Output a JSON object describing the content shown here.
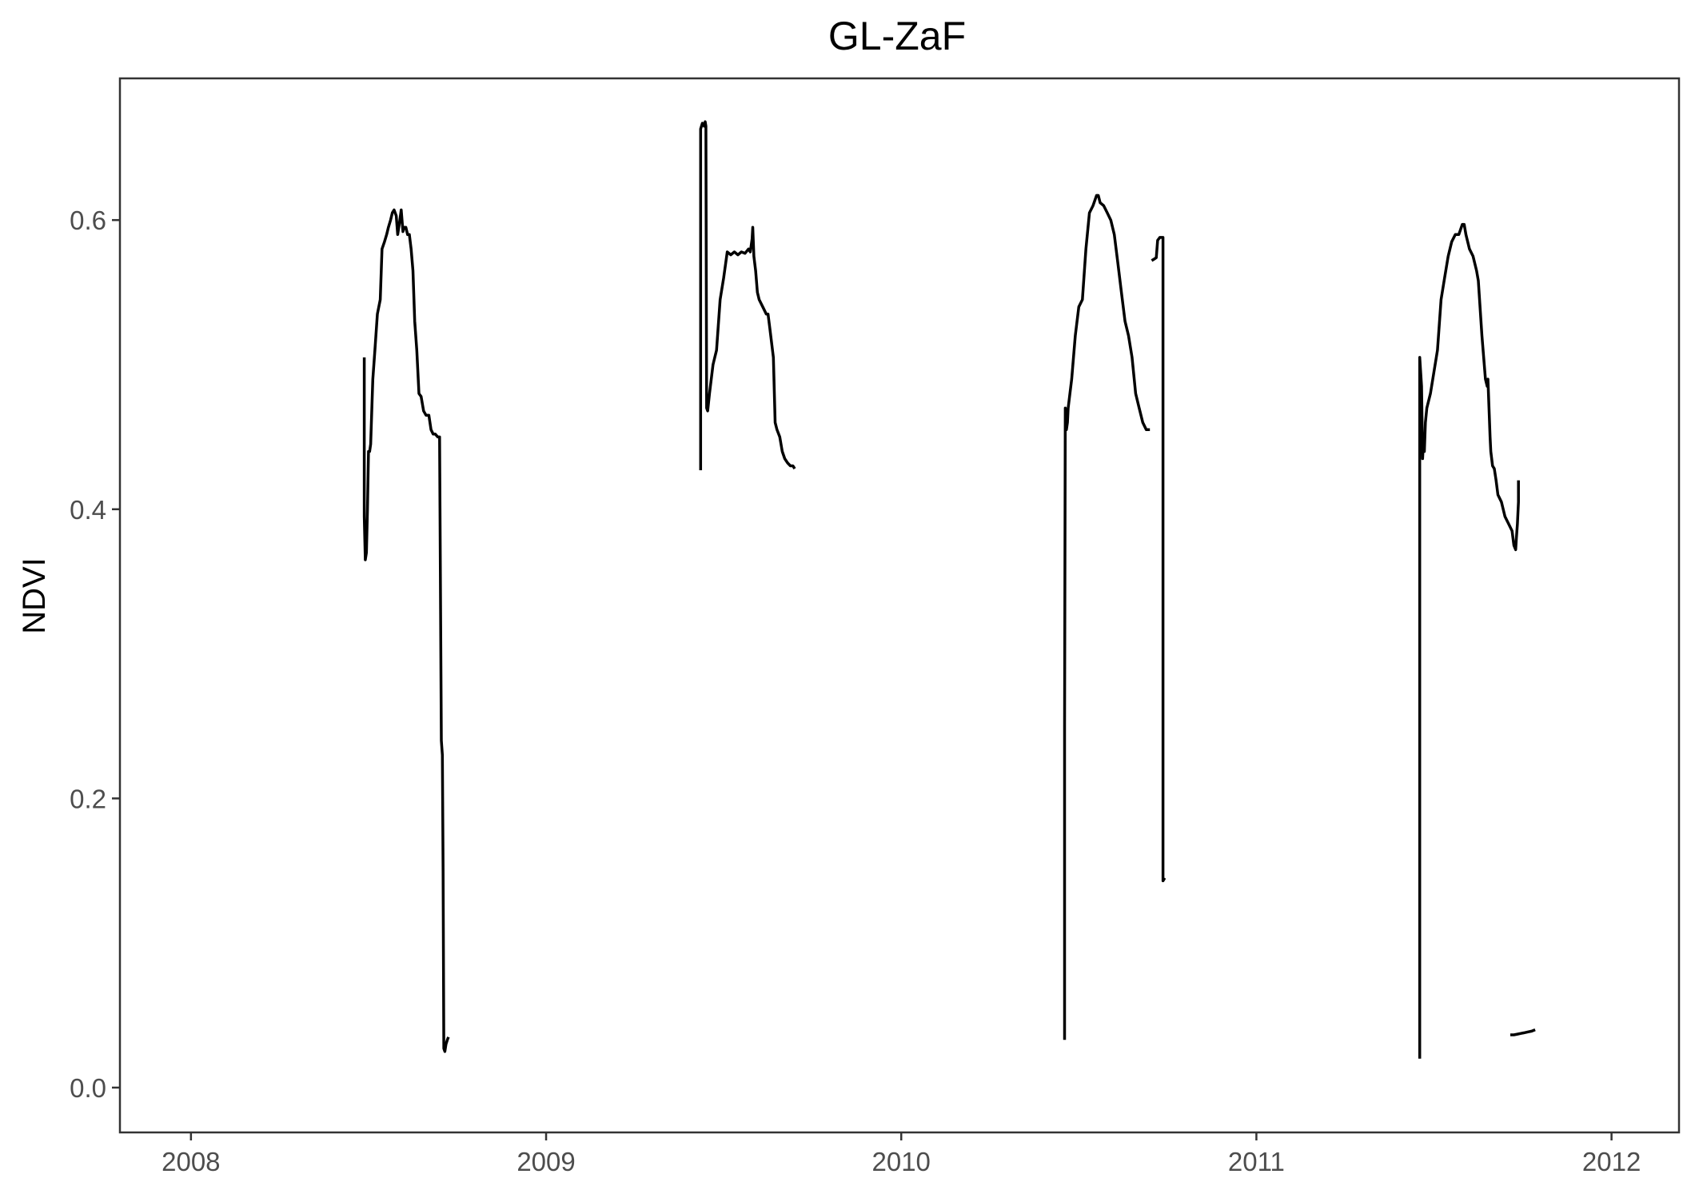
{
  "chart_data": {
    "type": "line",
    "title": "GL-ZaF",
    "xlabel": "",
    "ylabel": "NDVI",
    "x_tick_labels": [
      "2008",
      "2009",
      "2010",
      "2011",
      "2012"
    ],
    "x_tick_values": [
      2008,
      2009,
      2010,
      2011,
      2012
    ],
    "xlim": [
      2007.8,
      2012.19
    ],
    "y_tick_labels": [
      "0.0",
      "0.2",
      "0.4",
      "0.6"
    ],
    "y_tick_values": [
      0.0,
      0.2,
      0.4,
      0.6
    ],
    "ylim": [
      -0.031,
      0.698
    ],
    "grid": false,
    "legend": "none",
    "series_color": "#000000",
    "series": [
      {
        "x": [
          2008.488,
          2008.488,
          2008.491,
          2008.494,
          2008.497,
          2008.5,
          2008.503,
          2008.506,
          2008.512,
          2008.518,
          2008.525,
          2008.533,
          2008.538,
          2008.545,
          2008.551,
          2008.556,
          2008.562,
          2008.567,
          2008.572,
          2008.578,
          2008.582,
          2008.587,
          2008.592,
          2008.597,
          2008.6,
          2008.605,
          2008.61,
          2008.615,
          2008.62,
          2008.625,
          2008.63,
          2008.636,
          2008.642,
          2008.648,
          2008.655,
          2008.662,
          2008.67,
          2008.676,
          2008.682,
          2008.688,
          2008.695,
          2008.7,
          2008.705,
          2008.708,
          2008.71,
          2008.712,
          2008.715,
          2008.718,
          2008.722,
          2008.725
        ],
        "y": [
          0.505,
          0.395,
          0.365,
          0.37,
          0.4,
          0.44,
          0.44,
          0.445,
          0.49,
          0.51,
          0.535,
          0.545,
          0.58,
          0.585,
          0.59,
          0.595,
          0.6,
          0.605,
          0.607,
          0.603,
          0.59,
          0.598,
          0.607,
          0.592,
          0.595,
          0.595,
          0.59,
          0.59,
          0.58,
          0.565,
          0.53,
          0.51,
          0.48,
          0.478,
          0.468,
          0.465,
          0.465,
          0.455,
          0.452,
          0.452,
          0.45,
          0.45,
          0.24,
          0.23,
          0.15,
          0.027,
          0.025,
          0.03,
          0.033,
          0.035
        ]
      },
      {
        "x": [
          2009.435,
          2009.435,
          2009.44,
          2009.445,
          2009.448,
          2009.45,
          2009.452,
          2009.455,
          2009.46,
          2009.465,
          2009.47,
          2009.475,
          2009.48,
          2009.49,
          2009.5,
          2009.51,
          2009.52,
          2009.53,
          2009.54,
          2009.55,
          2009.56,
          2009.57,
          2009.575,
          2009.58,
          2009.582,
          2009.585,
          2009.59,
          2009.595,
          2009.6,
          2009.61,
          2009.62,
          2009.625,
          2009.63,
          2009.64,
          2009.645,
          2009.65,
          2009.658,
          2009.665,
          2009.672,
          2009.68,
          2009.688,
          2009.695,
          2009.7
        ],
        "y": [
          0.427,
          0.663,
          0.667,
          0.665,
          0.668,
          0.665,
          0.47,
          0.468,
          0.48,
          0.49,
          0.5,
          0.505,
          0.51,
          0.545,
          0.56,
          0.578,
          0.576,
          0.578,
          0.576,
          0.578,
          0.577,
          0.58,
          0.578,
          0.587,
          0.595,
          0.575,
          0.565,
          0.55,
          0.545,
          0.54,
          0.535,
          0.535,
          0.525,
          0.505,
          0.46,
          0.455,
          0.45,
          0.44,
          0.435,
          0.432,
          0.43,
          0.43,
          0.428
        ]
      },
      {
        "x": [
          2010.46,
          2010.46,
          2010.462,
          2010.465,
          2010.468,
          2010.47,
          2010.475,
          2010.48,
          2010.49,
          2010.5,
          2010.51,
          2010.52,
          2010.53,
          2010.54,
          2010.55,
          2010.555,
          2010.56,
          2010.57,
          2010.58,
          2010.59,
          2010.6,
          2010.61,
          2010.62,
          2010.63,
          2010.64,
          2010.65,
          2010.66,
          2010.67,
          2010.68,
          2010.69,
          2010.7
        ],
        "y": [
          0.033,
          0.25,
          0.47,
          0.455,
          0.46,
          0.47,
          0.48,
          0.49,
          0.52,
          0.54,
          0.545,
          0.58,
          0.605,
          0.61,
          0.617,
          0.617,
          0.612,
          0.61,
          0.605,
          0.6,
          0.59,
          0.57,
          0.55,
          0.53,
          0.52,
          0.505,
          0.48,
          0.47,
          0.46,
          0.455,
          0.455
        ]
      },
      {
        "x": [
          2010.705,
          2010.712,
          2010.718,
          2010.722,
          2010.728,
          2010.733,
          2010.737,
          2010.737,
          2010.742
        ],
        "y": [
          0.572,
          0.573,
          0.574,
          0.586,
          0.588,
          0.588,
          0.588,
          0.143,
          0.145
        ]
      },
      {
        "x": [
          2011.46,
          2011.46,
          2011.465,
          2011.468,
          2011.47,
          2011.473,
          2011.476,
          2011.48,
          2011.49,
          2011.5,
          2011.51,
          2011.52,
          2011.53,
          2011.54,
          2011.55,
          2011.56,
          2011.57,
          2011.58,
          2011.585,
          2011.59,
          2011.6,
          2011.61,
          2011.62,
          2011.625,
          2011.635,
          2011.645,
          2011.65,
          2011.652,
          2011.658,
          2011.66,
          2011.665,
          2011.67,
          2011.675,
          2011.68,
          2011.69,
          2011.7,
          2011.71,
          2011.72,
          2011.725,
          2011.73,
          2011.732,
          2011.735,
          2011.738,
          2011.738
        ],
        "y": [
          0.02,
          0.505,
          0.485,
          0.435,
          0.445,
          0.44,
          0.46,
          0.47,
          0.48,
          0.495,
          0.51,
          0.545,
          0.56,
          0.575,
          0.585,
          0.59,
          0.59,
          0.597,
          0.597,
          0.59,
          0.58,
          0.575,
          0.565,
          0.558,
          0.52,
          0.49,
          0.485,
          0.49,
          0.45,
          0.44,
          0.43,
          0.428,
          0.42,
          0.41,
          0.405,
          0.395,
          0.39,
          0.385,
          0.375,
          0.372,
          0.38,
          0.39,
          0.405,
          0.42
        ]
      },
      {
        "x": [
          2011.715,
          2011.725,
          2011.735,
          2011.745,
          2011.755,
          2011.765,
          2011.775,
          2011.785
        ],
        "y": [
          0.0365,
          0.0365,
          0.037,
          0.0375,
          0.038,
          0.0385,
          0.039,
          0.04
        ]
      }
    ]
  }
}
